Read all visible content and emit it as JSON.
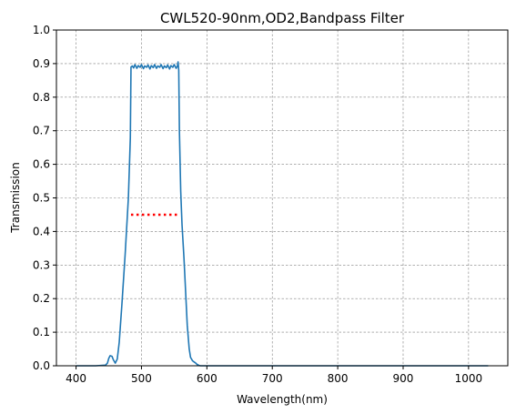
{
  "chart_data": {
    "type": "line",
    "title": "CWL520-90nm,OD2,Bandpass Filter",
    "xlabel": "Wavelength(nm)",
    "ylabel": "Transmission",
    "xlim": [
      370,
      1060
    ],
    "ylim": [
      0,
      1.0
    ],
    "xticks": [
      "400",
      "500",
      "600",
      "700",
      "800",
      "900",
      "1000"
    ],
    "yticks": [
      "0.0",
      "0.1",
      "0.2",
      "0.3",
      "0.4",
      "0.5",
      "0.6",
      "0.7",
      "0.8",
      "0.9",
      "1.0"
    ],
    "grid": true,
    "series": [
      {
        "color": "#1f77b4",
        "style": "solid",
        "x": [
          400,
          430,
          445,
          448,
          450,
          452,
          455,
          457,
          460,
          463,
          466,
          470,
          475,
          480,
          483,
          484,
          486,
          488,
          490,
          493,
          495,
          498,
          500,
          503,
          505,
          508,
          510,
          513,
          515,
          518,
          520,
          523,
          525,
          528,
          530,
          533,
          535,
          538,
          540,
          543,
          545,
          548,
          550,
          553,
          555,
          556,
          557,
          558,
          560,
          562,
          565,
          568,
          570,
          573,
          575,
          578,
          580,
          583,
          585,
          588,
          590,
          600,
          700,
          800,
          900,
          1000,
          1030
        ],
        "y": [
          0.0,
          0.0,
          0.002,
          0.008,
          0.022,
          0.03,
          0.028,
          0.018,
          0.008,
          0.02,
          0.07,
          0.18,
          0.33,
          0.5,
          0.68,
          0.89,
          0.893,
          0.887,
          0.897,
          0.886,
          0.894,
          0.889,
          0.897,
          0.885,
          0.893,
          0.889,
          0.896,
          0.884,
          0.894,
          0.888,
          0.897,
          0.886,
          0.893,
          0.889,
          0.897,
          0.885,
          0.893,
          0.888,
          0.896,
          0.884,
          0.894,
          0.889,
          0.897,
          0.886,
          0.893,
          0.905,
          0.88,
          0.7,
          0.52,
          0.42,
          0.32,
          0.2,
          0.12,
          0.05,
          0.025,
          0.015,
          0.012,
          0.008,
          0.004,
          0.001,
          0.0,
          0.0,
          0.0,
          0.0,
          0.0,
          0.0,
          0.0
        ]
      },
      {
        "color": "#ff0000",
        "style": "dotted",
        "x": [
          484,
          556
        ],
        "y": [
          0.45,
          0.45
        ]
      }
    ]
  }
}
